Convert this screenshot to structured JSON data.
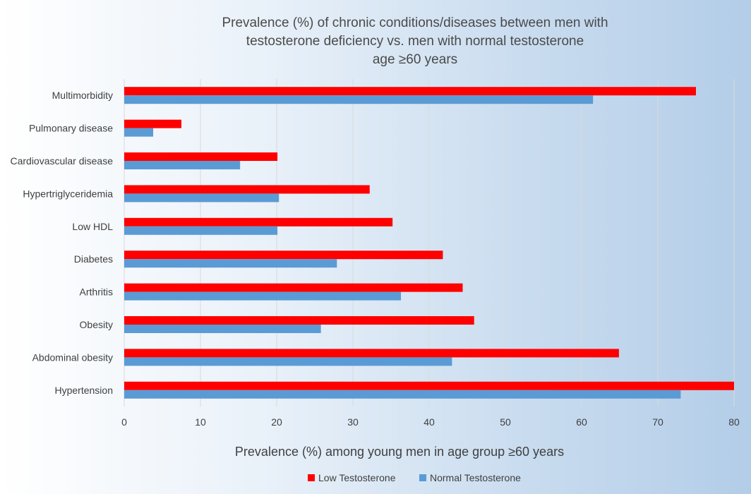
{
  "chart_data": {
    "type": "bar",
    "orientation": "horizontal",
    "title_lines": [
      "Prevalence (%) of chronic conditions/diseases between men with",
      "testosterone deficiency vs. men with normal testosterone",
      "age ≥60 years"
    ],
    "xlabel": "Prevalence (%) among young men in age group ≥60 years",
    "ylabel": "",
    "xlim": [
      0,
      80
    ],
    "x_ticks": [
      0,
      10,
      20,
      30,
      40,
      50,
      60,
      70,
      80
    ],
    "grid": true,
    "legend_position": "bottom",
    "categories": [
      "Multimorbidity",
      "Pulmonary disease",
      "Cardiovascular disease",
      "Hypertriglyceridemia",
      "Low HDL",
      "Diabetes",
      "Arthritis",
      "Obesity",
      "Abdominal obesity",
      "Hypertension"
    ],
    "series": [
      {
        "name": "Low Testosterone",
        "color": "#ff0000",
        "values": [
          75,
          7.5,
          20.1,
          32.2,
          35.2,
          41.8,
          44.4,
          45.9,
          64.9,
          80
        ]
      },
      {
        "name": "Normal Testosterone",
        "color": "#5b9bd5",
        "values": [
          61.5,
          3.8,
          15.2,
          20.3,
          20.1,
          27.9,
          36.3,
          25.8,
          43,
          73
        ]
      }
    ]
  }
}
